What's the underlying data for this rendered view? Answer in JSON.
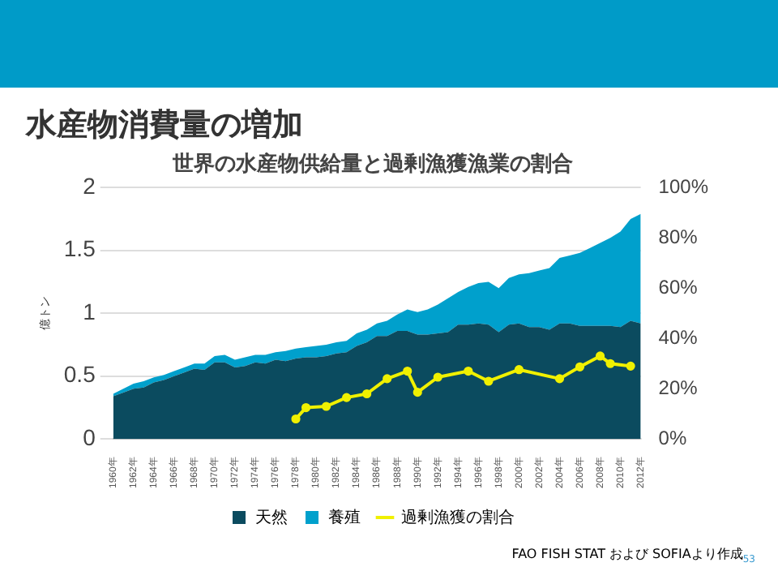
{
  "chart_data": {
    "type": "area",
    "title": "世界の水産物供給量と過剰漁獲漁業の割合",
    "subtitle": "水産物消費量の増加",
    "ylabel": "億トン",
    "categories": [
      "1960年",
      null,
      "1962年",
      null,
      "1964年",
      null,
      "1966年",
      null,
      "1968年",
      null,
      "1970年",
      null,
      "1972年",
      null,
      "1974年",
      null,
      "1976年",
      null,
      "1978年",
      null,
      "1980年",
      null,
      "1982年",
      null,
      "1984年",
      null,
      "1986年",
      null,
      "1988年",
      null,
      "1990年",
      null,
      "1992年",
      null,
      "1994年",
      null,
      "1996年",
      null,
      "1998年",
      null,
      "2000年",
      null,
      "2002年",
      null,
      "2004年",
      null,
      "2006年",
      null,
      "2008年",
      null,
      "2010年",
      null,
      "2012年"
    ],
    "stacked": true,
    "series": [
      {
        "name": "天然",
        "color": "#0b4b5f",
        "values": [
          0.34,
          0.37,
          0.4,
          0.41,
          0.45,
          0.47,
          0.5,
          0.53,
          0.56,
          0.55,
          0.61,
          0.61,
          0.57,
          0.58,
          0.61,
          0.6,
          0.63,
          0.62,
          0.64,
          0.65,
          0.65,
          0.66,
          0.68,
          0.69,
          0.74,
          0.77,
          0.82,
          0.82,
          0.86,
          0.86,
          0.83,
          0.83,
          0.84,
          0.85,
          0.91,
          0.91,
          0.92,
          0.91,
          0.85,
          0.91,
          0.92,
          0.89,
          0.89,
          0.87,
          0.92,
          0.92,
          0.9,
          0.9,
          0.9,
          0.9,
          0.89,
          0.94,
          0.92
        ]
      },
      {
        "name": "養殖",
        "color": "#00a0cc",
        "values": [
          0.02,
          0.03,
          0.04,
          0.05,
          0.04,
          0.04,
          0.04,
          0.04,
          0.04,
          0.05,
          0.05,
          0.06,
          0.06,
          0.07,
          0.06,
          0.07,
          0.06,
          0.08,
          0.08,
          0.08,
          0.09,
          0.09,
          0.09,
          0.09,
          0.1,
          0.1,
          0.1,
          0.12,
          0.13,
          0.17,
          0.18,
          0.2,
          0.23,
          0.27,
          0.26,
          0.3,
          0.32,
          0.34,
          0.35,
          0.37,
          0.39,
          0.43,
          0.45,
          0.49,
          0.52,
          0.54,
          0.58,
          0.62,
          0.66,
          0.7,
          0.76,
          0.81,
          0.87
        ]
      },
      {
        "name": "過剰漁獲の割合",
        "type": "line",
        "axis": "y2",
        "color": "#f0f000",
        "marker": "circle",
        "values": [
          null,
          null,
          null,
          null,
          null,
          null,
          null,
          null,
          null,
          null,
          null,
          null,
          null,
          null,
          null,
          null,
          null,
          null,
          8,
          12.5,
          null,
          13,
          null,
          16.5,
          null,
          18,
          null,
          24,
          null,
          27,
          18.6,
          null,
          24.6,
          null,
          null,
          27,
          null,
          23,
          null,
          null,
          27.6,
          null,
          null,
          null,
          24,
          null,
          28.7,
          null,
          33,
          30,
          null,
          29,
          null
        ]
      }
    ],
    "ylim": [
      0,
      2
    ],
    "yticks": [
      0,
      0.5,
      1,
      1.5,
      2
    ],
    "y2lim": [
      0,
      100
    ],
    "y2ticks": [
      {
        "value": 0,
        "label": "0%"
      },
      {
        "value": 20,
        "label": "20%"
      },
      {
        "value": 40,
        "label": "40%"
      },
      {
        "value": 60,
        "label": "60%"
      },
      {
        "value": 80,
        "label": "80%"
      },
      {
        "value": 100,
        "label": "100%"
      }
    ],
    "grid": "y",
    "legend": "bottom",
    "line_style": "solid",
    "annotations": [
      "FAO FISH STAT および SOFIAより作成",
      "53"
    ]
  }
}
